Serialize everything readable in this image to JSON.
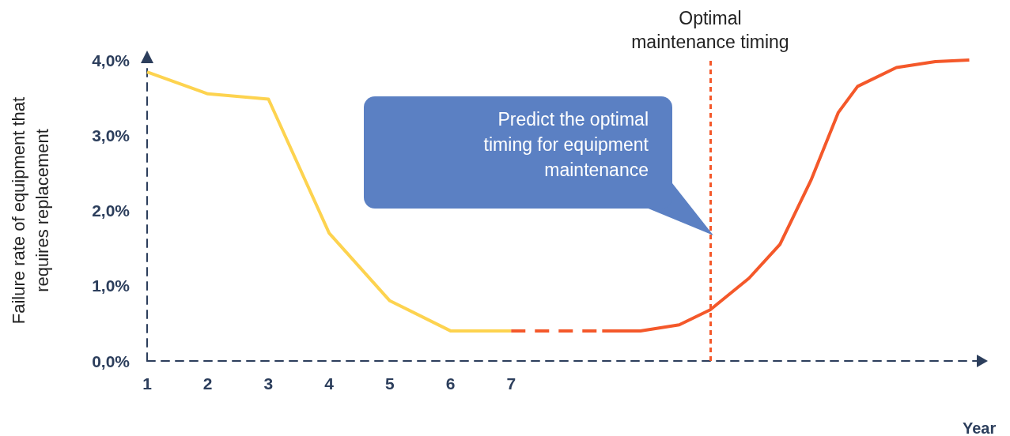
{
  "chart_data": {
    "type": "line",
    "ylabel": "Failure rate of equipment that requires replacement",
    "xlabel": "Year",
    "x": [
      1,
      2,
      3,
      4,
      5,
      6,
      7
    ],
    "series": [
      {
        "color": "#fdd34f",
        "values": [
          3.84,
          3.55,
          3.48,
          1.7,
          0.8,
          0.4,
          0.4
        ]
      },
      {
        "color": "#f4582a",
        "line_style": "dashed",
        "x": [
          7,
          8.5
        ],
        "values": [
          0.4,
          0.4
        ]
      },
      {
        "color": "#f4582a",
        "x": [
          8.5,
          9.13,
          9.77,
          10.28,
          10.92,
          11.43,
          11.94,
          12.39,
          12.71,
          13.35,
          13.99,
          14.55
        ],
        "values": [
          0.4,
          0.4,
          0.48,
          0.68,
          1.1,
          1.55,
          2.4,
          3.3,
          3.65,
          3.9,
          3.98,
          4.0
        ]
      }
    ],
    "xlim": [
      1,
      14.7
    ],
    "xticks": [
      1,
      2,
      3,
      4,
      5,
      6,
      7
    ],
    "ylim": [
      0,
      4
    ],
    "yticks": [
      {
        "value": 0,
        "label": "0,0%"
      },
      {
        "value": 1,
        "label": "1,0%"
      },
      {
        "value": 2,
        "label": "2,0%"
      },
      {
        "value": 3,
        "label": "3,0%"
      },
      {
        "value": 4,
        "label": "4,0%"
      }
    ],
    "ref_lines": [
      {
        "axis": "x",
        "value": 10.28,
        "label": "Optimal maintenance timing",
        "color": "#f4582a",
        "line_style": "dashed"
      }
    ],
    "annotations": [
      "Predict the optimal timing for equipment maintenance"
    ],
    "marker": "none",
    "line_style": "solid",
    "grid": false
  }
}
